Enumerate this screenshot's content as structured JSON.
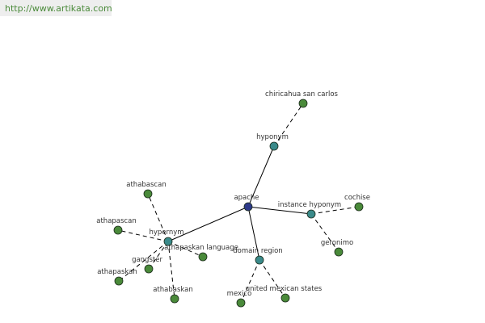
{
  "header": {
    "url": "http://www.artikata.com"
  },
  "nodes": [
    {
      "label": "apache"
    },
    {
      "label": "hyponym"
    },
    {
      "label": "chiricahua san carlos"
    },
    {
      "label": "instance hyponym"
    },
    {
      "label": "cochise"
    },
    {
      "label": "geronimo"
    },
    {
      "label": "domain region"
    },
    {
      "label": "mexico"
    },
    {
      "label": "united mexican states"
    },
    {
      "label": "hypernym"
    },
    {
      "label": "athabascan"
    },
    {
      "label": "athapascan"
    },
    {
      "label": "athapaskan language"
    },
    {
      "label": "gangster"
    },
    {
      "label": "athapaskan"
    },
    {
      "label": "athabaskan"
    }
  ]
}
